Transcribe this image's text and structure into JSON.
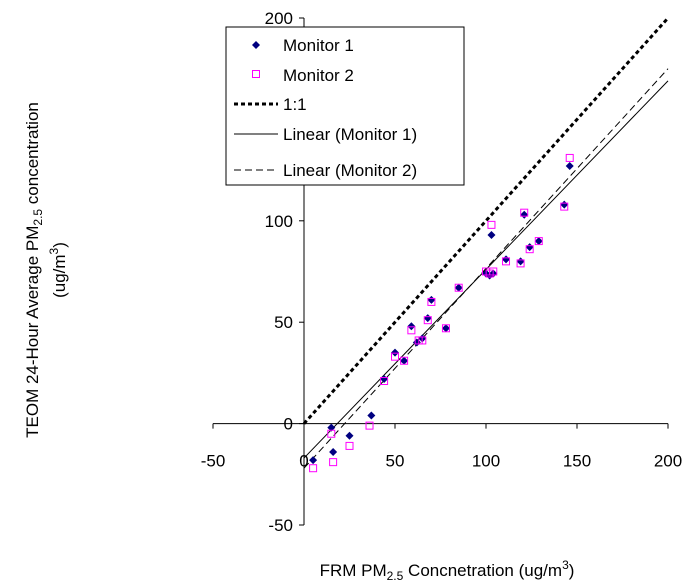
{
  "chart_data": {
    "type": "scatter",
    "title": "",
    "xlabel": {
      "pre": "FRM PM",
      "sub": "2.5",
      "post": " Concnetration (ug/m",
      "sup": "3",
      "end": ")"
    },
    "ylabel": {
      "line1_pre": "TEOM 24-Hour Average PM",
      "line1_sub": "2.5",
      "line1_post": " concentration",
      "line2_pre": "(ug/m",
      "line2_sup": "3",
      "line2_end": ")"
    },
    "xlim": [
      -50,
      200
    ],
    "ylim": [
      -50,
      200
    ],
    "x_ticks": [
      -50,
      0,
      50,
      100,
      150,
      200
    ],
    "y_ticks": [
      -50,
      0,
      50,
      100,
      150,
      200
    ],
    "x_tick_labels": [
      "-50",
      "0",
      "50",
      "100",
      "150",
      "200"
    ],
    "y_tick_labels": [
      "-50",
      "0",
      "50",
      "100",
      "150",
      "200"
    ],
    "grid": false,
    "legend_position": "top-left",
    "series": [
      {
        "name": "Monitor 1",
        "marker": "diamond",
        "color": "#000080",
        "points": [
          [
            5,
            -18
          ],
          [
            15,
            -2
          ],
          [
            16,
            -14
          ],
          [
            25,
            -6
          ],
          [
            37,
            4
          ],
          [
            44,
            22
          ],
          [
            50,
            35
          ],
          [
            55,
            31
          ],
          [
            59,
            48
          ],
          [
            62,
            40
          ],
          [
            65,
            42
          ],
          [
            68,
            52
          ],
          [
            70,
            61
          ],
          [
            78,
            47
          ],
          [
            85,
            67
          ],
          [
            100,
            74
          ],
          [
            102,
            73
          ],
          [
            103,
            93
          ],
          [
            104,
            74
          ],
          [
            111,
            81
          ],
          [
            119,
            80
          ],
          [
            121,
            103
          ],
          [
            124,
            87
          ],
          [
            129,
            90
          ],
          [
            143,
            108
          ],
          [
            146,
            127
          ]
        ]
      },
      {
        "name": "Monitor 2",
        "marker": "square-open",
        "color": "#ff00ff",
        "points": [
          [
            5,
            -22
          ],
          [
            15,
            -5
          ],
          [
            16,
            -19
          ],
          [
            25,
            -11
          ],
          [
            36,
            -1
          ],
          [
            44,
            21
          ],
          [
            50,
            33
          ],
          [
            55,
            31
          ],
          [
            59,
            46
          ],
          [
            63,
            41
          ],
          [
            65,
            41
          ],
          [
            68,
            51
          ],
          [
            70,
            60
          ],
          [
            78,
            47
          ],
          [
            85,
            67
          ],
          [
            100,
            75
          ],
          [
            102,
            74
          ],
          [
            103,
            98
          ],
          [
            104,
            75
          ],
          [
            111,
            80
          ],
          [
            119,
            79
          ],
          [
            121,
            104
          ],
          [
            124,
            86
          ],
          [
            129,
            90
          ],
          [
            143,
            107
          ],
          [
            146,
            131
          ]
        ]
      },
      {
        "name": "1:1",
        "type": "line",
        "style": "dotted-thick",
        "color": "#000000",
        "from": [
          0,
          0
        ],
        "to": [
          200,
          200
        ]
      },
      {
        "name": "Linear (Monitor 1)",
        "type": "line",
        "style": "solid",
        "color": "#000000",
        "from": [
          0,
          -17
        ],
        "to": [
          200,
          169
        ]
      },
      {
        "name": "Linear (Monitor 2)",
        "type": "line",
        "style": "dashed",
        "color": "#000000",
        "from": [
          0,
          -22
        ],
        "to": [
          200,
          175
        ]
      }
    ]
  }
}
